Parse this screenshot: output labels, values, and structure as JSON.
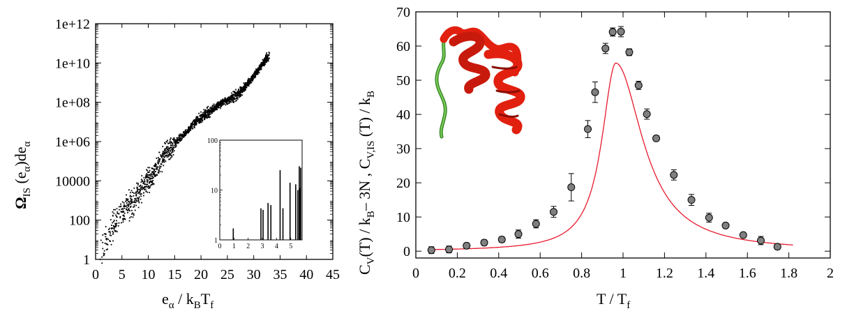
{
  "chart_data": [
    {
      "id": "left",
      "type": "scatter",
      "xlabel": {
        "main": "e",
        "sub1": "α",
        "mid": " / k",
        "sub2": "B",
        "tail": "T",
        "sub3": "f"
      },
      "ylabel": {
        "main": "Ω",
        "sub1": "IS",
        "mid": " (e",
        "sub2": "α",
        "tail": ")de",
        "sub3": "α"
      },
      "xlim": [
        0,
        45
      ],
      "xticks": [
        0,
        5,
        10,
        15,
        20,
        25,
        30,
        35,
        40,
        45
      ],
      "ylog": true,
      "ylim": [
        1,
        1000000000000.0
      ],
      "yticks": [
        {
          "v": 1,
          "label": "1"
        },
        {
          "v": 100,
          "label": "100"
        },
        {
          "v": 10000,
          "label": "10000"
        },
        {
          "v": 1000000,
          "label": "1e+06"
        },
        {
          "v": 100000000,
          "label": "1e+08"
        },
        {
          "v": 10000000000,
          "label": "1e+10"
        },
        {
          "v": 1000000000000,
          "label": "1e+12"
        }
      ],
      "trend": [
        [
          0.8,
          0.3
        ],
        [
          3,
          1.6
        ],
        [
          5,
          2.4
        ],
        [
          7,
          2.9
        ],
        [
          9,
          3.7
        ],
        [
          11,
          4.3
        ],
        [
          13,
          5.3
        ],
        [
          15,
          5.9
        ],
        [
          17,
          6.4
        ],
        [
          19,
          7.0
        ],
        [
          21,
          7.4
        ],
        [
          23,
          7.8
        ],
        [
          25,
          8.1
        ],
        [
          27,
          8.4
        ],
        [
          29,
          9.0
        ],
        [
          31,
          9.7
        ],
        [
          33,
          10.4
        ]
      ],
      "inset": {
        "xlim": [
          0,
          5.8
        ],
        "xticks": [
          0,
          1,
          2,
          3,
          4,
          5
        ],
        "ylog": true,
        "ylim": [
          1,
          100
        ],
        "yticks": [
          {
            "v": 1,
            "label": "1"
          },
          {
            "v": 10,
            "label": "10"
          },
          {
            "v": 100,
            "label": "100"
          }
        ],
        "bars": [
          [
            0.95,
            1.7
          ],
          [
            2.9,
            4.3
          ],
          [
            3.05,
            4.0
          ],
          [
            3.4,
            5.5
          ],
          [
            3.6,
            5.0
          ],
          [
            4.25,
            25
          ],
          [
            4.45,
            4.3
          ],
          [
            4.95,
            14
          ],
          [
            5.35,
            13
          ],
          [
            5.5,
            10
          ],
          [
            5.6,
            30
          ],
          [
            5.65,
            11
          ],
          [
            5.7,
            28
          ]
        ]
      }
    },
    {
      "id": "right",
      "type": "scatter",
      "xlabel": {
        "main": "T / T",
        "sub1": "f"
      },
      "ylabel": {
        "p1": "C",
        "s1": "V",
        "p2": "(T) / k",
        "s2": "B",
        "p3": "– 3N   ,   C",
        "s3": "V,IS",
        "p4": " (T) / k",
        "s4": "B"
      },
      "xlim": [
        0,
        2
      ],
      "xticks": [
        0,
        0.2,
        0.4,
        0.6,
        0.8,
        1,
        1.2,
        1.4,
        1.6,
        1.8,
        2
      ],
      "xticklabels": [
        "0",
        "0.2",
        "0.4",
        "0.6",
        "0.8",
        "1",
        "1.2",
        "1.4",
        "1.6",
        "1.8",
        "2"
      ],
      "ylim": [
        -2,
        70
      ],
      "yticks": [
        0,
        10,
        20,
        30,
        40,
        50,
        60,
        70
      ],
      "series": [
        {
          "kind": "points_with_errorbars",
          "color": "#808080",
          "points": [
            [
              0.075,
              0.3,
              1.0
            ],
            [
              0.16,
              0.5,
              1.0
            ],
            [
              0.245,
              1.6,
              0.8
            ],
            [
              0.33,
              2.5,
              0.8
            ],
            [
              0.415,
              3.4,
              0.8
            ],
            [
              0.495,
              5.0,
              1.2
            ],
            [
              0.58,
              8.0,
              1.2
            ],
            [
              0.665,
              11.5,
              1.6
            ],
            [
              0.75,
              18.7,
              4.0
            ],
            [
              0.83,
              35.7,
              2.5
            ],
            [
              0.865,
              46.5,
              3.0
            ],
            [
              0.915,
              59.3,
              1.5
            ],
            [
              0.95,
              64.1,
              1.2
            ],
            [
              0.99,
              64.2,
              1.5
            ],
            [
              1.03,
              58.2,
              1.0
            ],
            [
              1.075,
              48.5,
              1.2
            ],
            [
              1.115,
              40.1,
              1.5
            ],
            [
              1.16,
              33.0,
              0.8
            ],
            [
              1.245,
              22.3,
              1.5
            ],
            [
              1.33,
              15.0,
              1.6
            ],
            [
              1.415,
              9.8,
              1.3
            ],
            [
              1.495,
              7.5,
              0.7
            ],
            [
              1.58,
              4.7,
              0.6
            ],
            [
              1.665,
              3.1,
              1.2
            ],
            [
              1.745,
              1.3,
              0.5
            ]
          ]
        },
        {
          "kind": "line",
          "color": "#e8192c",
          "peak_x": 0.965,
          "peak_y": 55,
          "width_left": 0.082,
          "width_right": 0.158,
          "x_range": [
            0.07,
            1.82
          ]
        }
      ]
    }
  ]
}
